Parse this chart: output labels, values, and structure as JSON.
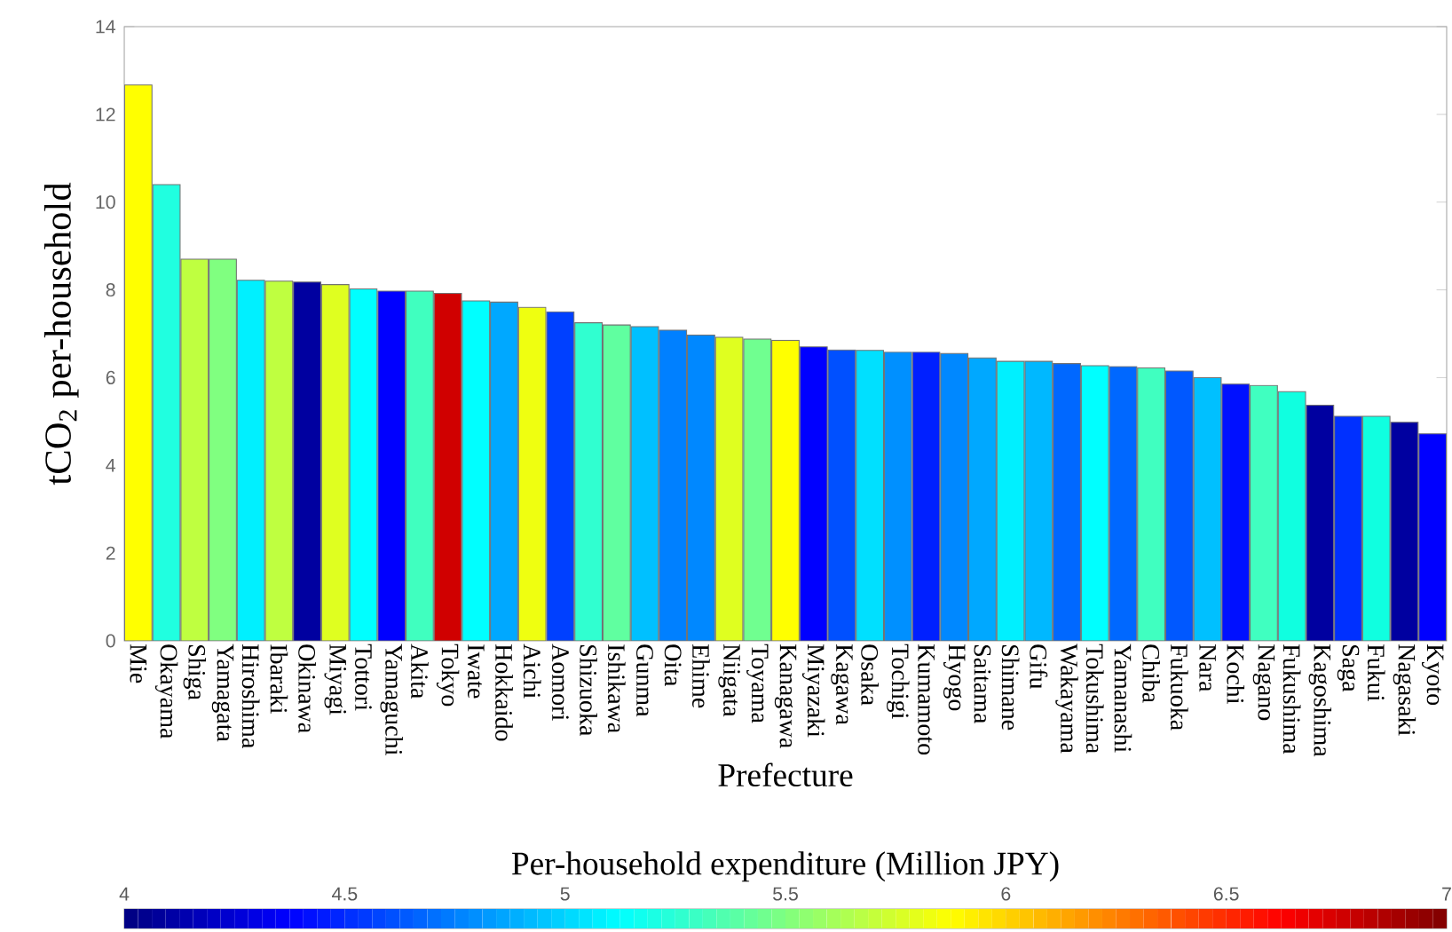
{
  "chart_data": {
    "type": "bar",
    "xlabel": "Prefecture",
    "ylabel": "tCO$_{2}$ per-household",
    "clabel": "Per-household expenditure (Million JPY)",
    "categories": [
      "Mie",
      "Okayama",
      "Shiga",
      "Yamagata",
      "Hiroshima",
      "Ibaraki",
      "Okinawa",
      "Miyagi",
      "Tottori",
      "Yamaguchi",
      "Akita",
      "Tokyo",
      "Iwate",
      "Hokkaido",
      "Aichi",
      "Aomori",
      "Shizuoka",
      "Ishikawa",
      "Gunma",
      "Oita",
      "Ehime",
      "Niigata",
      "Toyama",
      "Kanagawa",
      "Miyazaki",
      "Kagawa",
      "Osaka",
      "Tochigi",
      "Kumamoto",
      "Hyogo",
      "Saitama",
      "Shimane",
      "Gifu",
      "Wakayama",
      "Tokushima",
      "Yamanashi",
      "Chiba",
      "Fukuoka",
      "Nara",
      "Kochi",
      "Nagano",
      "Fukushima",
      "Kagoshima",
      "Saga",
      "Fukui",
      "Nagasaki",
      "Kyoto"
    ],
    "values": [
      12.67,
      10.4,
      8.7,
      8.7,
      8.22,
      8.2,
      8.18,
      8.12,
      8.02,
      7.97,
      7.97,
      7.92,
      7.75,
      7.72,
      7.6,
      7.5,
      7.25,
      7.2,
      7.16,
      7.08,
      6.97,
      6.92,
      6.88,
      6.85,
      6.7,
      6.63,
      6.62,
      6.58,
      6.58,
      6.55,
      6.45,
      6.37,
      6.37,
      6.32,
      6.27,
      6.25,
      6.22,
      6.15,
      6.0,
      5.85,
      5.82,
      5.68,
      5.37,
      5.12,
      5.12,
      4.98,
      4.72
    ],
    "colors": [
      "#ffff00",
      "#20ffe0",
      "#bfff40",
      "#80ff80",
      "#00f0ff",
      "#bfff40",
      "#0000a0",
      "#dfff20",
      "#00ffff",
      "#0000ff",
      "#40ffbf",
      "#d00000",
      "#00ffff",
      "#00a8ff",
      "#efff10",
      "#0040ff",
      "#30ffd0",
      "#60ffa0",
      "#00c0ff",
      "#0080ff",
      "#0088ff",
      "#dfff20",
      "#70ff90",
      "#ffff00",
      "#0000ff",
      "#0050ff",
      "#00e0ff",
      "#0090ff",
      "#0020ff",
      "#0088ff",
      "#00a8ff",
      "#00f0ff",
      "#00b8ff",
      "#0068ff",
      "#00ffff",
      "#0068ff",
      "#40ffc0",
      "#0058ff",
      "#00c0ff",
      "#0010ff",
      "#40ffc0",
      "#10ffe0",
      "#0000a0",
      "#0030ff",
      "#10ffe0",
      "#0000a0",
      "#0000ff"
    ],
    "ylim": [
      0,
      14
    ],
    "yticks": [
      0,
      2,
      4,
      6,
      8,
      10,
      12,
      14
    ],
    "clim": [
      4,
      7
    ],
    "cticks": [
      4,
      4.5,
      5,
      5.5,
      6,
      6.5,
      7
    ]
  }
}
